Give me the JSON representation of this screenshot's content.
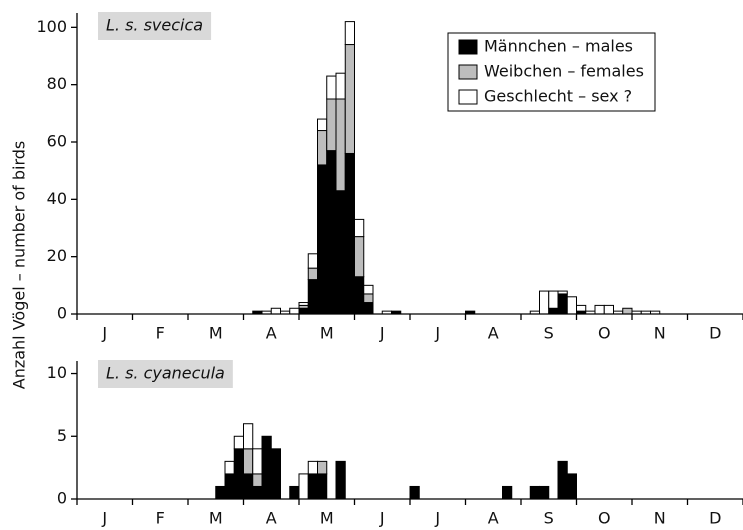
{
  "chart_data": [
    {
      "type": "bar",
      "stacked": true,
      "title": "L. s. svecica",
      "ylabel": "Anzahl Vögel – number of birds",
      "legend": "upper right",
      "x": [
        19,
        20,
        21,
        22,
        23,
        24,
        25,
        26,
        27,
        28,
        29,
        30,
        31,
        33,
        34,
        42,
        49,
        50,
        51,
        52,
        53,
        54,
        55,
        56,
        57,
        58,
        59,
        60,
        61,
        62
      ],
      "series": [
        {
          "name": "Männchen – males",
          "color": "#000000",
          "values": [
            1,
            0,
            0,
            0,
            0,
            2,
            12,
            52,
            57,
            43,
            56,
            13,
            4,
            0,
            1,
            1,
            0,
            0,
            2,
            7,
            0,
            1,
            0,
            0,
            0,
            0,
            0,
            0,
            0,
            0
          ]
        },
        {
          "name": "Weibchen – females",
          "color": "#bdbdbd",
          "values": [
            0,
            0,
            0,
            0,
            0,
            1,
            4,
            12,
            18,
            32,
            38,
            14,
            3,
            0,
            0,
            0,
            0,
            0,
            0,
            0,
            0,
            0,
            0,
            0,
            0,
            0,
            2,
            0,
            0,
            0
          ]
        },
        {
          "name": "Geschlecht – sex ?",
          "color": "#ffffff",
          "values": [
            0,
            1,
            2,
            1,
            2,
            1,
            5,
            4,
            8,
            9,
            8,
            6,
            3,
            1,
            0,
            0,
            1,
            8,
            6,
            1,
            6,
            2,
            1,
            3,
            3,
            1,
            0,
            1,
            1,
            1
          ]
        }
      ],
      "xlim": [
        0,
        72
      ],
      "xticks": [
        {
          "value": 3,
          "label": "J"
        },
        {
          "value": 9,
          "label": "F"
        },
        {
          "value": 15,
          "label": "M"
        },
        {
          "value": 21,
          "label": "A"
        },
        {
          "value": 27,
          "label": "M"
        },
        {
          "value": 33,
          "label": "J"
        },
        {
          "value": 39,
          "label": "J"
        },
        {
          "value": 45,
          "label": "A"
        },
        {
          "value": 51,
          "label": "S"
        },
        {
          "value": 57,
          "label": "O"
        },
        {
          "value": 63,
          "label": "N"
        },
        {
          "value": 69,
          "label": "D"
        }
      ],
      "xticks_minor": [
        0,
        6,
        12,
        18,
        24,
        30,
        36,
        42,
        48,
        54,
        60,
        66,
        72
      ],
      "ylim": [
        0,
        105
      ],
      "yticks": [
        0,
        20,
        40,
        60,
        80,
        100
      ]
    },
    {
      "type": "bar",
      "stacked": true,
      "title": "L. s. cyanecula",
      "x": [
        15,
        16,
        17,
        18,
        19,
        20,
        21,
        23,
        24,
        25,
        26,
        28,
        36,
        46,
        49,
        50,
        52,
        53
      ],
      "series": [
        {
          "color": "#000000",
          "values": [
            1,
            2,
            4,
            2,
            1,
            5,
            4,
            1,
            0,
            2,
            2,
            3,
            1,
            1,
            1,
            1,
            3,
            2
          ]
        },
        {
          "color": "#bdbdbd",
          "values": [
            0,
            0,
            0,
            2,
            1,
            0,
            0,
            0,
            0,
            0,
            1,
            0,
            0,
            0,
            0,
            0,
            0,
            0
          ]
        },
        {
          "color": "#ffffff",
          "values": [
            0,
            1,
            1,
            2,
            2,
            0,
            0,
            0,
            2,
            1,
            0,
            0,
            0,
            0,
            0,
            0,
            0,
            0
          ]
        }
      ],
      "xlim": [
        0,
        72
      ],
      "xticks": [
        {
          "value": 3,
          "label": "J"
        },
        {
          "value": 9,
          "label": "F"
        },
        {
          "value": 15,
          "label": "M"
        },
        {
          "value": 21,
          "label": "A"
        },
        {
          "value": 27,
          "label": "M"
        },
        {
          "value": 33,
          "label": "J"
        },
        {
          "value": 39,
          "label": "J"
        },
        {
          "value": 45,
          "label": "A"
        },
        {
          "value": 51,
          "label": "S"
        },
        {
          "value": 57,
          "label": "O"
        },
        {
          "value": 63,
          "label": "N"
        },
        {
          "value": 69,
          "label": "D"
        }
      ],
      "xticks_minor": [
        0,
        6,
        12,
        18,
        24,
        30,
        36,
        42,
        48,
        54,
        60,
        66,
        72
      ],
      "ylim": [
        0,
        11
      ],
      "yticks": [
        0,
        5,
        10
      ]
    }
  ]
}
